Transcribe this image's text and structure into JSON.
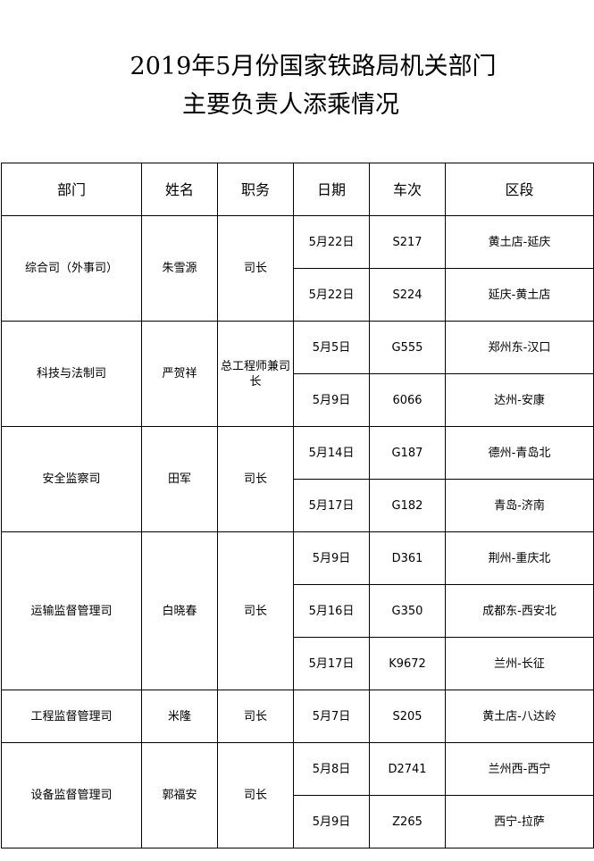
{
  "title": {
    "line1": "2019年5月份国家铁路局机关部门",
    "line2": "主要负责人添乘情况"
  },
  "headers": [
    "部门",
    "姓名",
    "职务",
    "日期",
    "车次",
    "区段"
  ],
  "groups": [
    {
      "dept": "综合司（外事司）",
      "name": "朱雪源",
      "title": "司长",
      "trips": [
        {
          "date": "5月22日",
          "train": "S217",
          "section": "黄土店-延庆"
        },
        {
          "date": "5月22日",
          "train": "S224",
          "section": "延庆-黄土店"
        }
      ]
    },
    {
      "dept": "科技与法制司",
      "name": "严贺祥",
      "title": "总工程师兼司长",
      "trips": [
        {
          "date": "5月5日",
          "train": "G555",
          "section": "郑州东-汉口"
        },
        {
          "date": "5月9日",
          "train": "6066",
          "section": "达州-安康"
        }
      ]
    },
    {
      "dept": "安全监察司",
      "name": "田军",
      "title": "司长",
      "trips": [
        {
          "date": "5月14日",
          "train": "G187",
          "section": "德州-青岛北"
        },
        {
          "date": "5月17日",
          "train": "G182",
          "section": "青岛-济南"
        }
      ]
    },
    {
      "dept": "运输监督管理司",
      "name": "白晓春",
      "title": "司长",
      "trips": [
        {
          "date": "5月9日",
          "train": "D361",
          "section": "荆州-重庆北"
        },
        {
          "date": "5月16日",
          "train": "G350",
          "section": "成都东-西安北"
        },
        {
          "date": "5月17日",
          "train": "K9672",
          "section": "兰州-长征"
        }
      ]
    },
    {
      "dept": "工程监督管理司",
      "name": "米隆",
      "title": "司长",
      "trips": [
        {
          "date": "5月7日",
          "train": "S205",
          "section": "黄土店-八达岭"
        }
      ]
    },
    {
      "dept": "设备监督管理司",
      "name": "郭福安",
      "title": "司长",
      "trips": [
        {
          "date": "5月8日",
          "train": "D2741",
          "section": "兰州西-西宁"
        },
        {
          "date": "5月9日",
          "train": "Z265",
          "section": "西宁-拉萨"
        }
      ]
    }
  ]
}
